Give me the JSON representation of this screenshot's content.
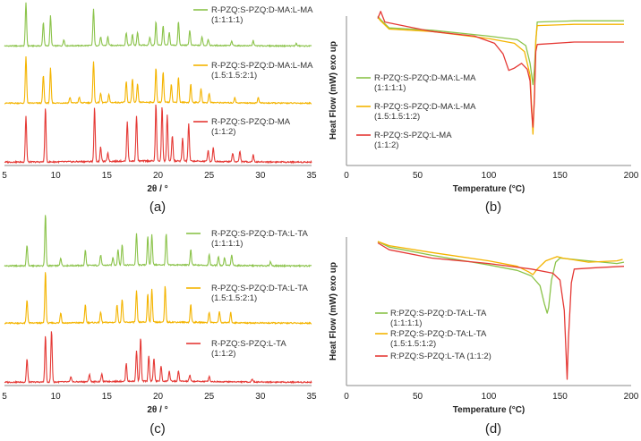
{
  "colors": {
    "green": "#8bc34a",
    "yellow": "#f4b400",
    "red": "#e53935",
    "axis": "#888888"
  },
  "chart_data": [
    {
      "id": "a",
      "type": "line",
      "panel_label": "(a)",
      "xlabel": "2θ / °",
      "xlim": [
        5,
        35
      ],
      "xticks": [
        5,
        10,
        15,
        20,
        25,
        30,
        35
      ],
      "series": [
        {
          "name": "R-PZQ:S-PZQ:D-MA:L-MA",
          "ratio": "(1:1:1:1)",
          "color": "green",
          "peaks": [
            [
              7.1,
              1.0
            ],
            [
              8.8,
              0.55
            ],
            [
              9.5,
              0.7
            ],
            [
              10.8,
              0.15
            ],
            [
              13.7,
              0.85
            ],
            [
              14.4,
              0.2
            ],
            [
              15.1,
              0.2
            ],
            [
              16.9,
              0.3
            ],
            [
              17.5,
              0.25
            ],
            [
              18.0,
              0.3
            ],
            [
              19.2,
              0.18
            ],
            [
              19.8,
              0.55
            ],
            [
              20.5,
              0.45
            ],
            [
              21.1,
              0.3
            ],
            [
              22.0,
              0.55
            ],
            [
              23.1,
              0.35
            ],
            [
              24.3,
              0.2
            ],
            [
              24.9,
              0.15
            ],
            [
              27.2,
              0.1
            ],
            [
              29.3,
              0.12
            ],
            [
              33.5,
              0.06
            ]
          ]
        },
        {
          "name": "R-PZQ:S-PZQ:D-MA:L-MA",
          "ratio": "(1.5:1.5:2:1)",
          "color": "yellow",
          "peaks": [
            [
              7.1,
              1.0
            ],
            [
              8.8,
              0.6
            ],
            [
              9.5,
              0.75
            ],
            [
              11.4,
              0.12
            ],
            [
              12.3,
              0.12
            ],
            [
              13.7,
              0.9
            ],
            [
              14.4,
              0.2
            ],
            [
              15.2,
              0.18
            ],
            [
              16.9,
              0.45
            ],
            [
              17.5,
              0.5
            ],
            [
              18.0,
              0.4
            ],
            [
              19.8,
              0.75
            ],
            [
              20.5,
              0.65
            ],
            [
              21.3,
              0.4
            ],
            [
              22.0,
              0.55
            ],
            [
              23.2,
              0.4
            ],
            [
              24.2,
              0.3
            ],
            [
              25.0,
              0.2
            ],
            [
              27.5,
              0.12
            ],
            [
              29.8,
              0.12
            ]
          ]
        },
        {
          "name": "R-PZQ:S-PZQ:D-MA",
          "ratio": "(1:1:2)",
          "color": "red",
          "peaks": [
            [
              7.1,
              0.8
            ],
            [
              9.0,
              0.95
            ],
            [
              13.8,
              0.95
            ],
            [
              14.4,
              0.25
            ],
            [
              15.1,
              0.15
            ],
            [
              17.0,
              0.7
            ],
            [
              17.9,
              0.8
            ],
            [
              19.8,
              1.0
            ],
            [
              20.4,
              0.95
            ],
            [
              20.9,
              0.8
            ],
            [
              21.4,
              0.45
            ],
            [
              22.4,
              0.4
            ],
            [
              23.0,
              0.65
            ],
            [
              24.9,
              0.2
            ],
            [
              25.4,
              0.25
            ],
            [
              27.3,
              0.15
            ],
            [
              28.0,
              0.18
            ],
            [
              29.3,
              0.12
            ]
          ]
        }
      ]
    },
    {
      "id": "b",
      "type": "line",
      "panel_label": "(b)",
      "xlabel": "Temperature (°C)",
      "ylabel": "Heat Flow (mW) exo up",
      "xlim": [
        0,
        200
      ],
      "xticks": [
        0,
        50,
        100,
        150,
        200
      ],
      "series": [
        {
          "name": "R-PZQ:S-PZQ:D-MA:L-MA",
          "ratio": "(1:1:1:1)",
          "color": "green",
          "points": [
            [
              22,
              1.0
            ],
            [
              24,
              0.97
            ],
            [
              30,
              0.9
            ],
            [
              60,
              0.88
            ],
            [
              100,
              0.83
            ],
            [
              120,
              0.8
            ],
            [
              126,
              0.75
            ],
            [
              129,
              0.6
            ],
            [
              131,
              0.42
            ],
            [
              132,
              0.55
            ],
            [
              133,
              0.78
            ],
            [
              134,
              0.95
            ],
            [
              160,
              0.96
            ],
            [
              195,
              0.96
            ]
          ]
        },
        {
          "name": "R-PZQ:S-PZQ:D-MA:L-MA",
          "ratio": "(1.5:1.5:1:2)",
          "color": "yellow",
          "points": [
            [
              22,
              0.99
            ],
            [
              24,
              0.96
            ],
            [
              30,
              0.89
            ],
            [
              60,
              0.87
            ],
            [
              100,
              0.81
            ],
            [
              118,
              0.77
            ],
            [
              125,
              0.7
            ],
            [
              129,
              0.5
            ],
            [
              131,
              0.0
            ],
            [
              132,
              0.3
            ],
            [
              133,
              0.8
            ],
            [
              134,
              0.92
            ],
            [
              160,
              0.93
            ],
            [
              195,
              0.93
            ]
          ]
        },
        {
          "name": "R-PZQ:S-PZQ:L-MA",
          "ratio": "(1:1:2)",
          "color": "red",
          "points": [
            [
              22,
              0.98
            ],
            [
              24,
              1.04
            ],
            [
              27,
              0.95
            ],
            [
              60,
              0.87
            ],
            [
              90,
              0.83
            ],
            [
              104,
              0.77
            ],
            [
              110,
              0.68
            ],
            [
              114,
              0.54
            ],
            [
              118,
              0.56
            ],
            [
              123,
              0.6
            ],
            [
              127,
              0.55
            ],
            [
              129,
              0.45
            ],
            [
              130,
              0.2
            ],
            [
              131,
              0.06
            ],
            [
              132,
              0.3
            ],
            [
              133,
              0.7
            ],
            [
              134,
              0.76
            ],
            [
              160,
              0.78
            ],
            [
              195,
              0.78
            ]
          ]
        }
      ]
    },
    {
      "id": "c",
      "type": "line",
      "panel_label": "(c)",
      "xlabel": "2θ / °",
      "xlim": [
        5,
        35
      ],
      "xticks": [
        5,
        10,
        15,
        20,
        25,
        30,
        35
      ],
      "series": [
        {
          "name": "R-PZQ:S-PZQ:D-TA:L-TA",
          "ratio": "(1:1:1:1)",
          "color": "green",
          "peaks": [
            [
              7.2,
              0.4
            ],
            [
              9.0,
              1.0
            ],
            [
              10.5,
              0.15
            ],
            [
              12.9,
              0.3
            ],
            [
              14.4,
              0.2
            ],
            [
              15.6,
              0.15
            ],
            [
              16.1,
              0.3
            ],
            [
              16.5,
              0.4
            ],
            [
              17.9,
              0.6
            ],
            [
              19.0,
              0.55
            ],
            [
              19.4,
              0.6
            ],
            [
              20.8,
              0.6
            ],
            [
              23.2,
              0.3
            ],
            [
              25.0,
              0.2
            ],
            [
              25.9,
              0.18
            ],
            [
              26.5,
              0.15
            ],
            [
              27.2,
              0.2
            ],
            [
              31.0,
              0.08
            ]
          ]
        },
        {
          "name": "R-PZQ:S-PZQ:D-TA:L-TA",
          "ratio": "(1.5:1.5:2:1)",
          "color": "yellow",
          "peaks": [
            [
              7.2,
              0.45
            ],
            [
              9.0,
              1.0
            ],
            [
              10.5,
              0.2
            ],
            [
              12.9,
              0.35
            ],
            [
              14.4,
              0.2
            ],
            [
              16.0,
              0.35
            ],
            [
              16.5,
              0.45
            ],
            [
              17.9,
              0.6
            ],
            [
              19.0,
              0.55
            ],
            [
              19.4,
              0.65
            ],
            [
              20.7,
              0.7
            ],
            [
              23.2,
              0.35
            ],
            [
              25.0,
              0.2
            ],
            [
              26.0,
              0.22
            ],
            [
              27.1,
              0.2
            ]
          ]
        },
        {
          "name": "R-PZQ:S-PZQ:L-TA",
          "ratio": "(1:1:2)",
          "color": "red",
          "peaks": [
            [
              7.2,
              0.45
            ],
            [
              9.0,
              0.9
            ],
            [
              9.6,
              1.0
            ],
            [
              11.5,
              0.1
            ],
            [
              13.3,
              0.15
            ],
            [
              14.5,
              0.15
            ],
            [
              16.9,
              0.35
            ],
            [
              17.9,
              0.6
            ],
            [
              18.3,
              0.85
            ],
            [
              19.1,
              0.5
            ],
            [
              19.6,
              0.45
            ],
            [
              20.3,
              0.3
            ],
            [
              21.1,
              0.2
            ],
            [
              22.0,
              0.2
            ],
            [
              23.1,
              0.12
            ],
            [
              25.0,
              0.1
            ],
            [
              29.2,
              0.06
            ]
          ]
        }
      ]
    },
    {
      "id": "d",
      "type": "line",
      "panel_label": "(d)",
      "xlabel": "Temperature (°C)",
      "ylabel": "Heat Flow (mW) exo up",
      "xlim": [
        0,
        200
      ],
      "xticks": [
        0,
        50,
        100,
        150,
        200
      ],
      "series": [
        {
          "name": "R:PZQ:S-PZQ:D-TA:L-TA",
          "ratio": "(1:1:1:1)",
          "color": "green",
          "points": [
            [
              22,
              1.0
            ],
            [
              30,
              0.96
            ],
            [
              60,
              0.9
            ],
            [
              100,
              0.83
            ],
            [
              120,
              0.79
            ],
            [
              130,
              0.75
            ],
            [
              136,
              0.68
            ],
            [
              139,
              0.55
            ],
            [
              141,
              0.48
            ],
            [
              142,
              0.52
            ],
            [
              144,
              0.72
            ],
            [
              147,
              0.85
            ],
            [
              150,
              0.88
            ],
            [
              170,
              0.86
            ],
            [
              190,
              0.84
            ],
            [
              195,
              0.85
            ]
          ]
        },
        {
          "name": "R:PZQ:S-PZQ:D-TA:L-TA",
          "ratio": "(1.5:1.5:1:2)",
          "color": "yellow",
          "points": [
            [
              22,
              1.0
            ],
            [
              30,
              0.97
            ],
            [
              60,
              0.92
            ],
            [
              100,
              0.86
            ],
            [
              120,
              0.82
            ],
            [
              128,
              0.78
            ],
            [
              131,
              0.76
            ],
            [
              134,
              0.8
            ],
            [
              140,
              0.86
            ],
            [
              148,
              0.89
            ],
            [
              152,
              0.88
            ],
            [
              170,
              0.85
            ],
            [
              190,
              0.86
            ],
            [
              194,
              0.87
            ]
          ]
        },
        {
          "name": "R:PZQ:S-PZQ:L-TA (1:1:2)",
          "ratio": "",
          "color": "red",
          "points": [
            [
              22,
              0.99
            ],
            [
              30,
              0.94
            ],
            [
              60,
              0.88
            ],
            [
              100,
              0.84
            ],
            [
              130,
              0.8
            ],
            [
              145,
              0.77
            ],
            [
              150,
              0.72
            ],
            [
              153,
              0.5
            ],
            [
              155,
              0.0
            ],
            [
              156,
              0.3
            ],
            [
              158,
              0.7
            ],
            [
              160,
              0.8
            ],
            [
              175,
              0.81
            ],
            [
              195,
              0.82
            ]
          ]
        }
      ]
    }
  ]
}
